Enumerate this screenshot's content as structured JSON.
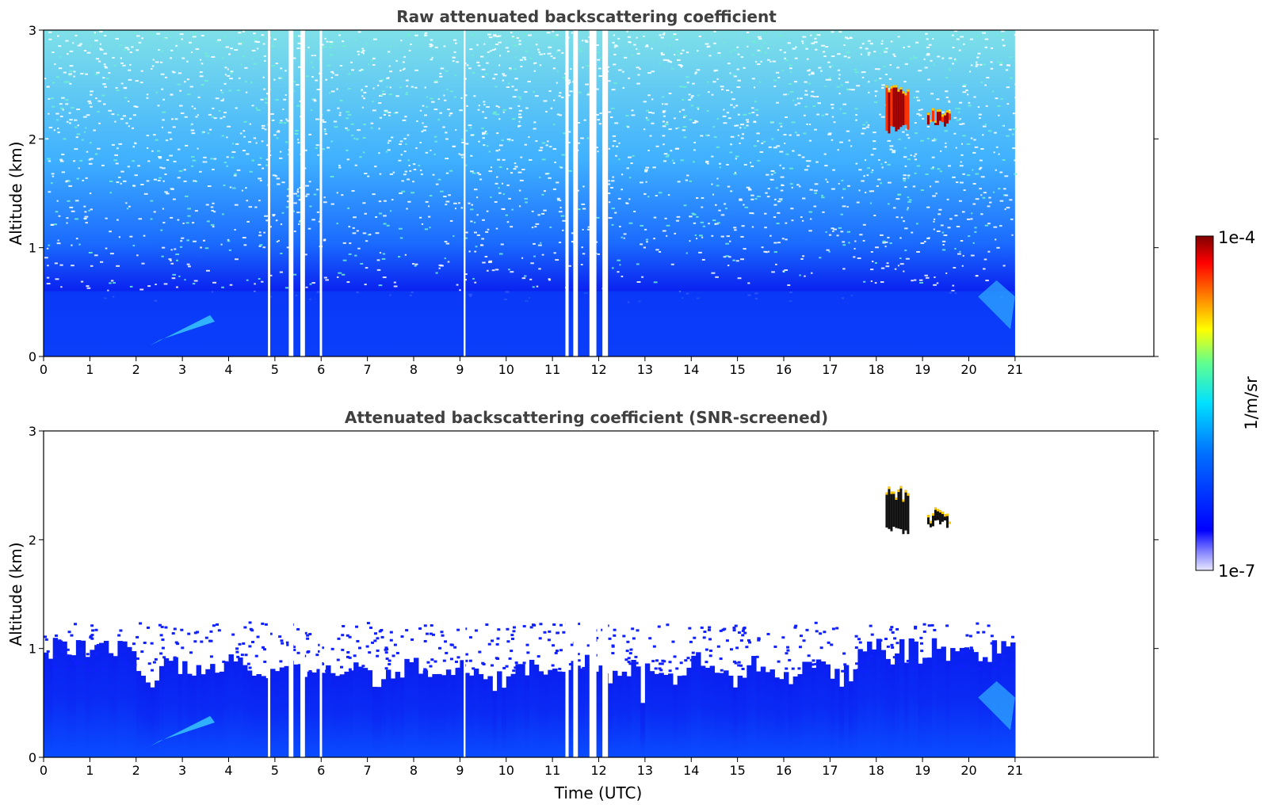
{
  "chart_data": [
    {
      "type": "heatmap",
      "title": "Raw attenuated backscattering coefficient",
      "ylabel": "Altitude (km)",
      "xlabel": "",
      "xlim": [
        0,
        24
      ],
      "ylim": [
        0,
        3
      ],
      "x_ticks": [
        "0",
        "1",
        "2",
        "3",
        "4",
        "5",
        "6",
        "7",
        "8",
        "9",
        "10",
        "11",
        "12",
        "13",
        "14",
        "15",
        "16",
        "17",
        "18",
        "19",
        "20",
        "21"
      ],
      "y_ticks": [
        "0",
        "1",
        "2",
        "3"
      ],
      "data_end_time": 21,
      "data_gaps_utc": [
        [
          4.85,
          4.9
        ],
        [
          5.3,
          5.4
        ],
        [
          5.55,
          5.65
        ],
        [
          5.97,
          6.02
        ],
        [
          9.08,
          9.12
        ],
        [
          11.28,
          11.35
        ],
        [
          11.45,
          11.55
        ],
        [
          11.8,
          11.95
        ],
        [
          12.08,
          12.2
        ]
      ],
      "features": [
        {
          "label": "aerosol layer",
          "time": [
            0,
            21
          ],
          "altitude_km": [
            0,
            0.6
          ],
          "value": "1e-5"
        },
        {
          "label": "cloud",
          "time": [
            18.2,
            18.7
          ],
          "altitude_km": [
            2.05,
            2.5
          ],
          "value": "1e-4"
        },
        {
          "label": "cloud",
          "time": [
            19.1,
            19.6
          ],
          "altitude_km": [
            2.1,
            2.3
          ],
          "value": "1e-4"
        }
      ]
    },
    {
      "type": "heatmap",
      "title": "Attenuated backscattering coefficient (SNR-screened)",
      "ylabel": "Altitude (km)",
      "xlabel": "Time (UTC)",
      "xlim": [
        0,
        24
      ],
      "ylim": [
        0,
        3
      ],
      "x_ticks": [
        "0",
        "1",
        "2",
        "3",
        "4",
        "5",
        "6",
        "7",
        "8",
        "9",
        "10",
        "11",
        "12",
        "13",
        "14",
        "15",
        "16",
        "17",
        "18",
        "19",
        "20",
        "21"
      ],
      "y_ticks": [
        "0",
        "1",
        "2",
        "3"
      ],
      "data_end_time": 21,
      "data_gaps_utc": [
        [
          4.85,
          4.9
        ],
        [
          5.3,
          5.4
        ],
        [
          5.55,
          5.65
        ],
        [
          5.97,
          6.02
        ],
        [
          9.08,
          9.12
        ],
        [
          11.28,
          11.35
        ],
        [
          11.45,
          11.55
        ],
        [
          11.8,
          11.95
        ],
        [
          12.08,
          12.2
        ]
      ],
      "features": [
        {
          "label": "boundary layer top",
          "time": [
            0,
            21
          ],
          "altitude_km": [
            0.6,
            1.1
          ]
        },
        {
          "label": "cloud",
          "time": [
            18.2,
            18.7
          ],
          "altitude_km": [
            2.05,
            2.5
          ],
          "value": "1e-4"
        },
        {
          "label": "cloud",
          "time": [
            19.1,
            19.6
          ],
          "altitude_km": [
            2.1,
            2.3
          ],
          "value": "1e-4"
        }
      ]
    }
  ],
  "colorbar": {
    "label": "1/m/sr",
    "max_label": "1e-4",
    "min_label": "1e-7",
    "colormap": "jet",
    "colors": [
      "#e8e8ff",
      "#0000ff",
      "#0070ff",
      "#00e0ff",
      "#60ff90",
      "#ffff00",
      "#ff8000",
      "#ff0000",
      "#800000"
    ]
  }
}
